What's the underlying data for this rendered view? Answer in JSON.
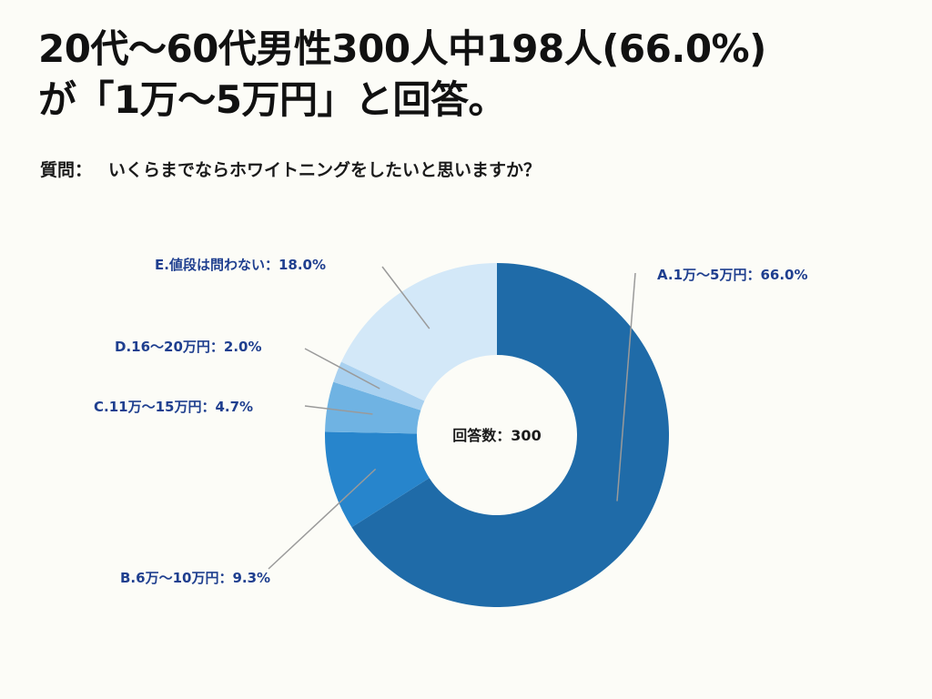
{
  "title": {
    "line1": "20代〜60代男性300人中198人(66.0%)",
    "line2": "が「1万〜5万円」と回答。"
  },
  "question": {
    "prefix": "質問：",
    "text": "いくらまでならホワイトニングをしたいと思いますか？"
  },
  "colors": {
    "label_text": "#1f3f8f",
    "leader_line": "#9a9a9a",
    "center_text": "#1a1a1a",
    "background": "#fcfcf7"
  },
  "chart_data": {
    "type": "pie",
    "variant": "donut",
    "center_label": "回答数：300",
    "total": 300,
    "slices": [
      {
        "key": "A",
        "label": "A.1万〜5万円：66.0%",
        "value": 66.0,
        "color": "#1f6ba8"
      },
      {
        "key": "B",
        "label": "B.6万〜10万円：9.3%",
        "value": 9.3,
        "color": "#2785cc"
      },
      {
        "key": "C",
        "label": "C.11万〜15万円：4.7%",
        "value": 4.7,
        "color": "#6fb3e3"
      },
      {
        "key": "D",
        "label": "D.16〜20万円：2.0%",
        "value": 2.0,
        "color": "#a9d1f0"
      },
      {
        "key": "E",
        "label": "E.値段は問わない：18.0%",
        "value": 18.0,
        "color": "#d3e8f8"
      }
    ]
  }
}
